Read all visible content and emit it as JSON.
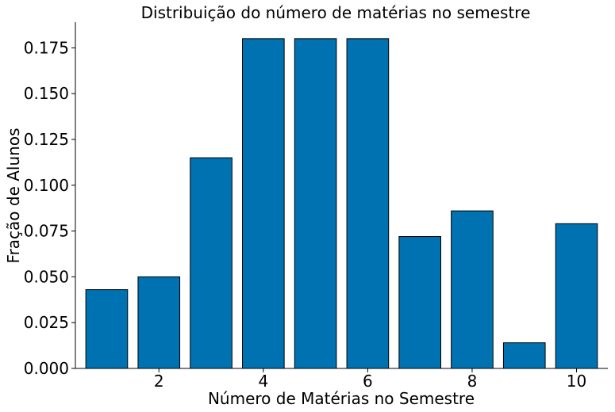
{
  "chart_data": {
    "type": "bar",
    "title": "Distribuição do número de matérias no semestre",
    "xlabel": "Número de Matérias no Semestre",
    "ylabel": "Fração de Alunos",
    "x": [
      1,
      2,
      3,
      4,
      5,
      6,
      7,
      8,
      9,
      10
    ],
    "values": [
      0.043,
      0.05,
      0.115,
      0.18,
      0.18,
      0.18,
      0.072,
      0.086,
      0.014,
      0.079
    ],
    "xticks": [
      "2",
      "4",
      "6",
      "8",
      "10"
    ],
    "yticks": [
      "0.000",
      "0.025",
      "0.050",
      "0.075",
      "0.100",
      "0.125",
      "0.150",
      "0.175"
    ],
    "ylim": [
      0,
      0.189
    ],
    "xlim": [
      0.4,
      10.6
    ],
    "bar_color": "#0072b2",
    "edge_color": "#000000",
    "grid": false,
    "legend": "none"
  }
}
